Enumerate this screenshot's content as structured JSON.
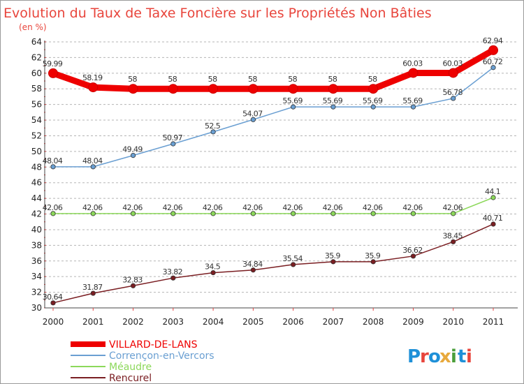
{
  "title": "Evolution du Taux de Taxe Foncière sur les Propriétés Non Bâties",
  "unit_label": "(en %)",
  "logo": {
    "letters": [
      "P",
      "r",
      "o",
      "x",
      "i",
      "t",
      "i"
    ],
    "colors": [
      "#1e90d8",
      "#e8453c",
      "#1e90d8",
      "#e8a93c",
      "#4a9e3a",
      "#1e90d8",
      "#e8453c"
    ]
  },
  "chart_data": {
    "type": "line",
    "x": [
      "2000",
      "2001",
      "2002",
      "2003",
      "2004",
      "2005",
      "2006",
      "2007",
      "2008",
      "2009",
      "2010",
      "2011"
    ],
    "ylim": [
      30,
      64
    ],
    "yticks": [
      30,
      32,
      34,
      36,
      38,
      40,
      42,
      44,
      46,
      48,
      50,
      52,
      54,
      56,
      58,
      60,
      62,
      64
    ],
    "grid": "horizontal-dashed",
    "legend": "bottom-left",
    "series": [
      {
        "name": "VILLARD-DE-LANS",
        "color": "#ee0000",
        "values": [
          59.99,
          58.19,
          58,
          58,
          58,
          58,
          58,
          58,
          58,
          60.03,
          60.03,
          62.94
        ],
        "labels": [
          "59.99",
          "58.19",
          "58",
          "58",
          "58",
          "58",
          "58",
          "58",
          "58",
          "60.03",
          "60.03",
          "62.94"
        ]
      },
      {
        "name": "Corrençon-en-Vercors",
        "color": "#6a9fd2",
        "values": [
          48.04,
          48.04,
          49.49,
          50.97,
          52.5,
          54.07,
          55.69,
          55.69,
          55.69,
          55.69,
          56.78,
          60.72
        ],
        "labels": [
          "48.04",
          "48.04",
          "49.49",
          "50.97",
          "52.5",
          "54.07",
          "55.69",
          "55.69",
          "55.69",
          "55.69",
          "56.78",
          "60.72"
        ]
      },
      {
        "name": "Méaudre",
        "color": "#8cd85a",
        "values": [
          42.06,
          42.06,
          42.06,
          42.06,
          42.06,
          42.06,
          42.06,
          42.06,
          42.06,
          42.06,
          42.06,
          44.1
        ],
        "labels": [
          "42.06",
          "42.06",
          "42.06",
          "42.06",
          "42.06",
          "42.06",
          "42.06",
          "42.06",
          "42.06",
          "42.06",
          "42.06",
          "44.1"
        ]
      },
      {
        "name": "Rencurel",
        "color": "#7a1e22",
        "values": [
          30.64,
          31.87,
          32.83,
          33.82,
          34.5,
          34.84,
          35.54,
          35.9,
          35.9,
          36.62,
          38.45,
          40.71
        ],
        "labels": [
          "30.64",
          "31.87",
          "32.83",
          "33.82",
          "34.5",
          "34.84",
          "35.54",
          "35.9",
          "35.9",
          "36.62",
          "38.45",
          "40.71"
        ]
      }
    ]
  }
}
